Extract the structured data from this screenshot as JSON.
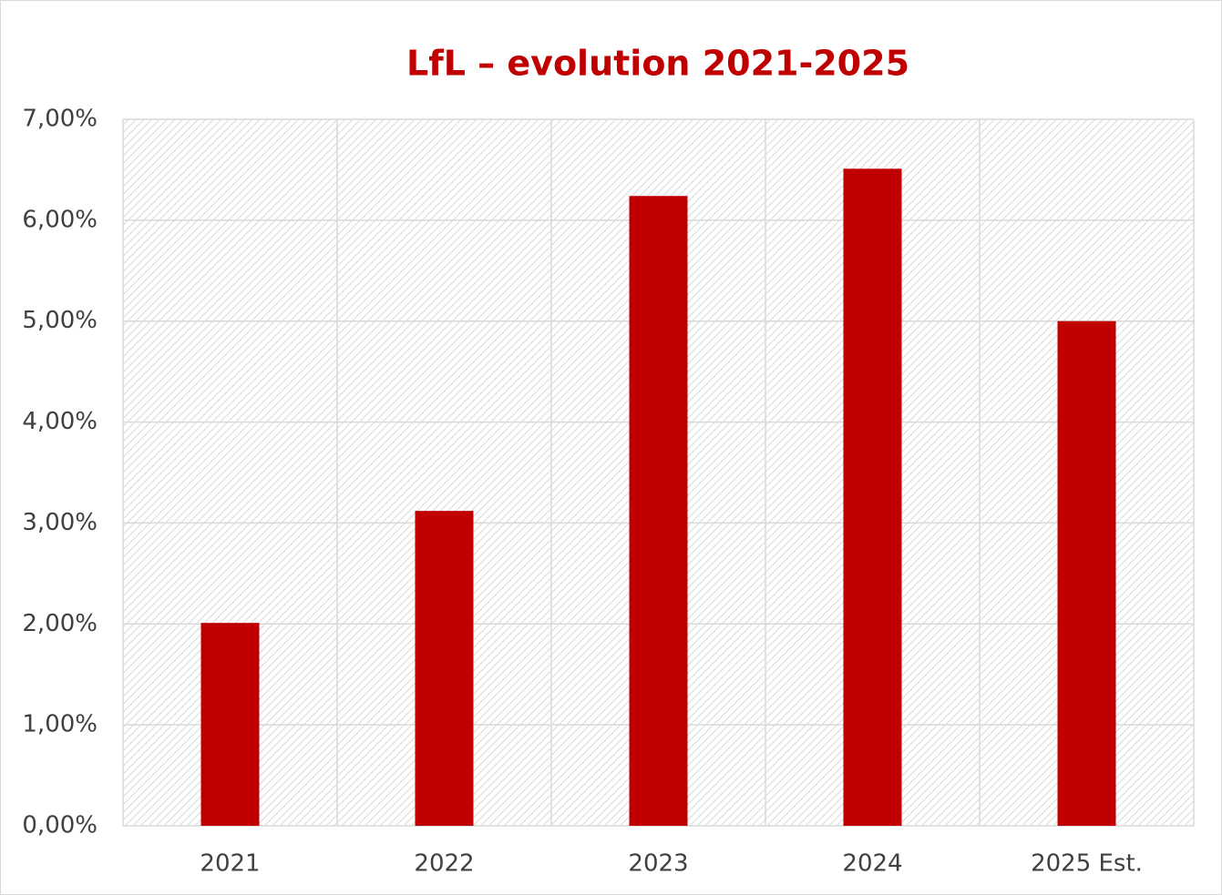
{
  "chart_data": {
    "type": "bar",
    "title": "LfL – evolution 2021-2025",
    "categories": [
      "2021",
      "2022",
      "2023",
      "2024",
      "2025 Est."
    ],
    "values": [
      2.01,
      3.12,
      6.24,
      6.51,
      5.0
    ],
    "color": "#c00000",
    "ylim": [
      0,
      7
    ],
    "yticks": [
      {
        "value": 0,
        "label": "0,00%"
      },
      {
        "value": 1,
        "label": "1,00%"
      },
      {
        "value": 2,
        "label": "2,00%"
      },
      {
        "value": 3,
        "label": "3,00%"
      },
      {
        "value": 4,
        "label": "4,00%"
      },
      {
        "value": 5,
        "label": "5,00%"
      },
      {
        "value": 6,
        "label": "6,00%"
      },
      {
        "value": 7,
        "label": "7,00%"
      }
    ],
    "grid": true
  }
}
